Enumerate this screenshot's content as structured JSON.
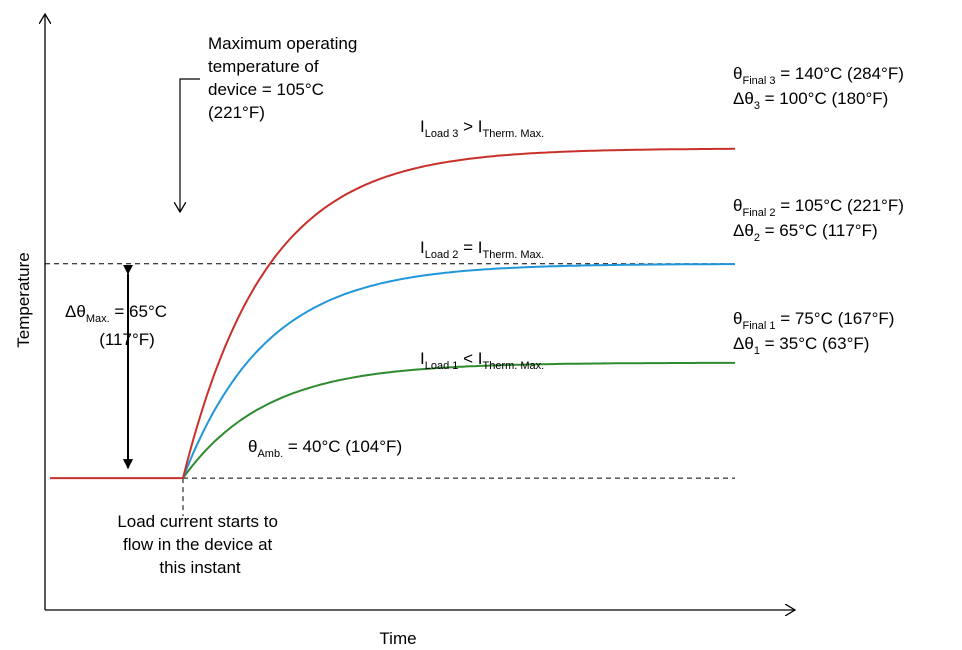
{
  "chart_data": {
    "type": "line",
    "xlabel": "Time",
    "ylabel": "Temperature",
    "x_range": [
      0,
      100
    ],
    "y_range_celsius": [
      0,
      175
    ],
    "ambient_celsius": 40,
    "load_start_time": 20,
    "time_constant": 12,
    "series": [
      {
        "key": "s1",
        "final_celsius": 75,
        "color": "#2e8b2e"
      },
      {
        "key": "s2",
        "final_celsius": 105,
        "color": "#2196d8"
      },
      {
        "key": "s3",
        "final_celsius": 140,
        "color": "#c8302a"
      }
    ],
    "reference_lines": [
      {
        "key": "max_operating",
        "celsius": 105,
        "dashed": true
      },
      {
        "key": "ambient",
        "celsius": 40,
        "dashed": true
      }
    ],
    "labels": {
      "max_temp_line1": "Maximum operating",
      "max_temp_line2": "temperature of",
      "max_temp_line3": "device = 105°C",
      "max_temp_line4": "(221°F)",
      "delta_max_sym": "Δθ",
      "delta_max_sub": "Max.",
      "delta_max_val": " = 65°C",
      "delta_max_f": "(117°F)",
      "amb_sym": "θ",
      "amb_sub": "Amb.",
      "amb_val": " = 40°C (104°F)",
      "load_line1": "Load current starts to",
      "load_line2": "flow in the device at",
      "load_line3": "this instant",
      "final3_sym": "θ",
      "final3_sub": "Final 3",
      "final3_val": " = 140°C (284°F)",
      "delta3_sym": "Δθ",
      "delta3_sub": "3",
      "delta3_val": " = 100°C (180°F)",
      "final2_sym": "θ",
      "final2_sub": "Final 2",
      "final2_val": " = 105°C (221°F)",
      "delta2_sym": "Δθ",
      "delta2_sub": "2",
      "delta2_val": " = 65°C (117°F)",
      "final1_sym": "θ",
      "final1_sub": "Final 1",
      "final1_val": " = 75°C (167°F)",
      "delta1_sym": "Δθ",
      "delta1_sub": "1",
      "delta1_val": " = 35°C (63°F)",
      "iload3_i1": "I",
      "iload3_sub1": "Load 3",
      "iload3_op": " > I",
      "iload3_sub2": "Therm. Max.",
      "iload2_i1": "I",
      "iload2_sub1": "Load 2",
      "iload2_op": " = I",
      "iload2_sub2": "Therm. Max.",
      "iload1_i1": "I",
      "iload1_sub1": "Load 1",
      "iload1_op": " < I",
      "iload1_sub2": "Therm. Max."
    }
  }
}
